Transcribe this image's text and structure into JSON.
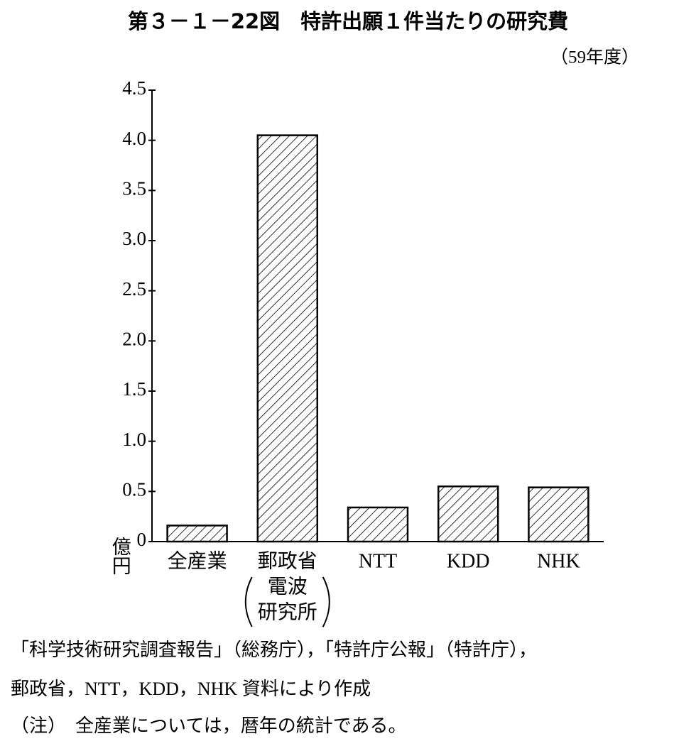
{
  "chart_data": {
    "type": "bar",
    "title": "第３－１－22図　特許出願１件当たりの研究費",
    "subtitle": "（59年度）",
    "y_label": "億円",
    "categories": [
      "全産業",
      "郵政省",
      "NTT",
      "KDD",
      "NHK"
    ],
    "category_note_lines": [
      "電波",
      "研究所"
    ],
    "values": [
      0.16,
      4.05,
      0.34,
      0.55,
      0.54
    ],
    "color": "#000000",
    "ylim": [
      0,
      4.5
    ],
    "yticks": [
      0,
      0.5,
      {
        "value": 1,
        "label": "1.0"
      },
      1.5,
      {
        "value": 2,
        "label": "2.0"
      },
      2.5,
      {
        "value": 3,
        "label": "3.0"
      },
      3.5,
      {
        "value": 4,
        "label": "4.0"
      },
      4.5
    ],
    "notes": [
      "「科学技術研究調査報告」（総務庁），「特許庁公報」（特許庁），",
      "郵政省，NTT，KDD，NHK 資料により作成",
      "（注）　全産業については，暦年の統計である。"
    ]
  }
}
